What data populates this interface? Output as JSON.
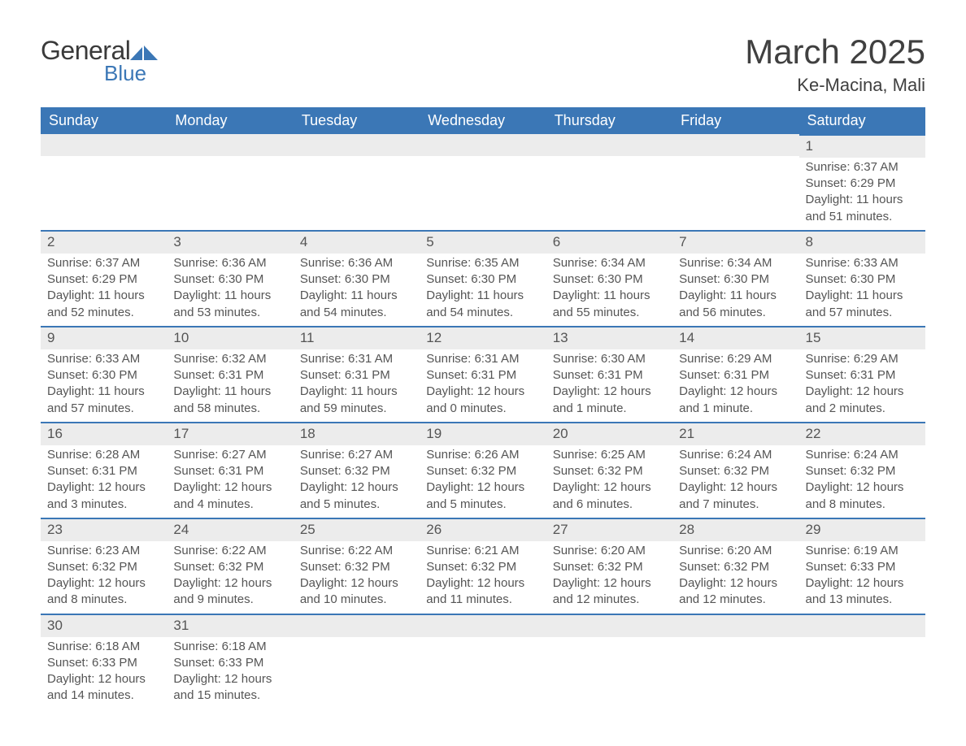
{
  "brand": {
    "name1": "General",
    "name2": "Blue",
    "mark_color": "#3b77b6",
    "text_color": "#3a3a3a"
  },
  "header": {
    "title": "March 2025",
    "location": "Ke-Macina, Mali"
  },
  "calendar": {
    "header_bg": "#3b77b6",
    "header_fg": "#ffffff",
    "row_separator_color": "#3b77b6",
    "daynum_bg": "#ececec",
    "body_fg": "#555555",
    "columns": [
      "Sunday",
      "Monday",
      "Tuesday",
      "Wednesday",
      "Thursday",
      "Friday",
      "Saturday"
    ],
    "weeks": [
      [
        null,
        null,
        null,
        null,
        null,
        null,
        {
          "n": "1",
          "sunrise": "Sunrise: 6:37 AM",
          "sunset": "Sunset: 6:29 PM",
          "dl1": "Daylight: 11 hours",
          "dl2": "and 51 minutes."
        }
      ],
      [
        {
          "n": "2",
          "sunrise": "Sunrise: 6:37 AM",
          "sunset": "Sunset: 6:29 PM",
          "dl1": "Daylight: 11 hours",
          "dl2": "and 52 minutes."
        },
        {
          "n": "3",
          "sunrise": "Sunrise: 6:36 AM",
          "sunset": "Sunset: 6:30 PM",
          "dl1": "Daylight: 11 hours",
          "dl2": "and 53 minutes."
        },
        {
          "n": "4",
          "sunrise": "Sunrise: 6:36 AM",
          "sunset": "Sunset: 6:30 PM",
          "dl1": "Daylight: 11 hours",
          "dl2": "and 54 minutes."
        },
        {
          "n": "5",
          "sunrise": "Sunrise: 6:35 AM",
          "sunset": "Sunset: 6:30 PM",
          "dl1": "Daylight: 11 hours",
          "dl2": "and 54 minutes."
        },
        {
          "n": "6",
          "sunrise": "Sunrise: 6:34 AM",
          "sunset": "Sunset: 6:30 PM",
          "dl1": "Daylight: 11 hours",
          "dl2": "and 55 minutes."
        },
        {
          "n": "7",
          "sunrise": "Sunrise: 6:34 AM",
          "sunset": "Sunset: 6:30 PM",
          "dl1": "Daylight: 11 hours",
          "dl2": "and 56 minutes."
        },
        {
          "n": "8",
          "sunrise": "Sunrise: 6:33 AM",
          "sunset": "Sunset: 6:30 PM",
          "dl1": "Daylight: 11 hours",
          "dl2": "and 57 minutes."
        }
      ],
      [
        {
          "n": "9",
          "sunrise": "Sunrise: 6:33 AM",
          "sunset": "Sunset: 6:30 PM",
          "dl1": "Daylight: 11 hours",
          "dl2": "and 57 minutes."
        },
        {
          "n": "10",
          "sunrise": "Sunrise: 6:32 AM",
          "sunset": "Sunset: 6:31 PM",
          "dl1": "Daylight: 11 hours",
          "dl2": "and 58 minutes."
        },
        {
          "n": "11",
          "sunrise": "Sunrise: 6:31 AM",
          "sunset": "Sunset: 6:31 PM",
          "dl1": "Daylight: 11 hours",
          "dl2": "and 59 minutes."
        },
        {
          "n": "12",
          "sunrise": "Sunrise: 6:31 AM",
          "sunset": "Sunset: 6:31 PM",
          "dl1": "Daylight: 12 hours",
          "dl2": "and 0 minutes."
        },
        {
          "n": "13",
          "sunrise": "Sunrise: 6:30 AM",
          "sunset": "Sunset: 6:31 PM",
          "dl1": "Daylight: 12 hours",
          "dl2": "and 1 minute."
        },
        {
          "n": "14",
          "sunrise": "Sunrise: 6:29 AM",
          "sunset": "Sunset: 6:31 PM",
          "dl1": "Daylight: 12 hours",
          "dl2": "and 1 minute."
        },
        {
          "n": "15",
          "sunrise": "Sunrise: 6:29 AM",
          "sunset": "Sunset: 6:31 PM",
          "dl1": "Daylight: 12 hours",
          "dl2": "and 2 minutes."
        }
      ],
      [
        {
          "n": "16",
          "sunrise": "Sunrise: 6:28 AM",
          "sunset": "Sunset: 6:31 PM",
          "dl1": "Daylight: 12 hours",
          "dl2": "and 3 minutes."
        },
        {
          "n": "17",
          "sunrise": "Sunrise: 6:27 AM",
          "sunset": "Sunset: 6:31 PM",
          "dl1": "Daylight: 12 hours",
          "dl2": "and 4 minutes."
        },
        {
          "n": "18",
          "sunrise": "Sunrise: 6:27 AM",
          "sunset": "Sunset: 6:32 PM",
          "dl1": "Daylight: 12 hours",
          "dl2": "and 5 minutes."
        },
        {
          "n": "19",
          "sunrise": "Sunrise: 6:26 AM",
          "sunset": "Sunset: 6:32 PM",
          "dl1": "Daylight: 12 hours",
          "dl2": "and 5 minutes."
        },
        {
          "n": "20",
          "sunrise": "Sunrise: 6:25 AM",
          "sunset": "Sunset: 6:32 PM",
          "dl1": "Daylight: 12 hours",
          "dl2": "and 6 minutes."
        },
        {
          "n": "21",
          "sunrise": "Sunrise: 6:24 AM",
          "sunset": "Sunset: 6:32 PM",
          "dl1": "Daylight: 12 hours",
          "dl2": "and 7 minutes."
        },
        {
          "n": "22",
          "sunrise": "Sunrise: 6:24 AM",
          "sunset": "Sunset: 6:32 PM",
          "dl1": "Daylight: 12 hours",
          "dl2": "and 8 minutes."
        }
      ],
      [
        {
          "n": "23",
          "sunrise": "Sunrise: 6:23 AM",
          "sunset": "Sunset: 6:32 PM",
          "dl1": "Daylight: 12 hours",
          "dl2": "and 8 minutes."
        },
        {
          "n": "24",
          "sunrise": "Sunrise: 6:22 AM",
          "sunset": "Sunset: 6:32 PM",
          "dl1": "Daylight: 12 hours",
          "dl2": "and 9 minutes."
        },
        {
          "n": "25",
          "sunrise": "Sunrise: 6:22 AM",
          "sunset": "Sunset: 6:32 PM",
          "dl1": "Daylight: 12 hours",
          "dl2": "and 10 minutes."
        },
        {
          "n": "26",
          "sunrise": "Sunrise: 6:21 AM",
          "sunset": "Sunset: 6:32 PM",
          "dl1": "Daylight: 12 hours",
          "dl2": "and 11 minutes."
        },
        {
          "n": "27",
          "sunrise": "Sunrise: 6:20 AM",
          "sunset": "Sunset: 6:32 PM",
          "dl1": "Daylight: 12 hours",
          "dl2": "and 12 minutes."
        },
        {
          "n": "28",
          "sunrise": "Sunrise: 6:20 AM",
          "sunset": "Sunset: 6:32 PM",
          "dl1": "Daylight: 12 hours",
          "dl2": "and 12 minutes."
        },
        {
          "n": "29",
          "sunrise": "Sunrise: 6:19 AM",
          "sunset": "Sunset: 6:33 PM",
          "dl1": "Daylight: 12 hours",
          "dl2": "and 13 minutes."
        }
      ],
      [
        {
          "n": "30",
          "sunrise": "Sunrise: 6:18 AM",
          "sunset": "Sunset: 6:33 PM",
          "dl1": "Daylight: 12 hours",
          "dl2": "and 14 minutes."
        },
        {
          "n": "31",
          "sunrise": "Sunrise: 6:18 AM",
          "sunset": "Sunset: 6:33 PM",
          "dl1": "Daylight: 12 hours",
          "dl2": "and 15 minutes."
        },
        null,
        null,
        null,
        null,
        null
      ]
    ]
  }
}
